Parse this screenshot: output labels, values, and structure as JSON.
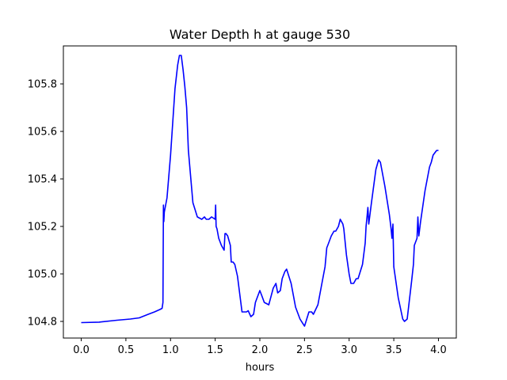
{
  "chart_data": {
    "type": "line",
    "title": "Water Depth h at gauge 530",
    "xlabel": "hours",
    "ylabel": "",
    "xlim": [
      -0.2,
      4.2
    ],
    "ylim": [
      104.73,
      105.96
    ],
    "grid": false,
    "xticks": [
      0.0,
      0.5,
      1.0,
      1.5,
      2.0,
      2.5,
      3.0,
      3.5,
      4.0
    ],
    "xtick_labels": [
      "0.0",
      "0.5",
      "1.0",
      "1.5",
      "2.0",
      "2.5",
      "3.0",
      "3.5",
      "4.0"
    ],
    "yticks": [
      104.8,
      105.0,
      105.2,
      105.4,
      105.6,
      105.8
    ],
    "ytick_labels": [
      "104.8",
      "105.0",
      "105.2",
      "105.4",
      "105.6",
      "105.8"
    ],
    "line_color": "#0000ff",
    "series": [
      {
        "x": [
          0.0,
          0.2,
          0.4,
          0.55,
          0.65,
          0.75,
          0.82,
          0.88,
          0.905,
          0.915,
          0.92,
          0.925,
          0.93,
          0.96,
          1.0,
          1.05,
          1.08,
          1.1,
          1.12,
          1.14,
          1.16,
          1.18,
          1.2,
          1.25,
          1.3,
          1.35,
          1.38,
          1.4,
          1.43,
          1.46,
          1.5,
          1.505,
          1.51,
          1.52,
          1.54,
          1.57,
          1.6,
          1.61,
          1.62,
          1.64,
          1.67,
          1.68,
          1.7,
          1.72,
          1.75,
          1.8,
          1.85,
          1.87,
          1.9,
          1.93,
          1.95,
          2.0,
          2.02,
          2.05,
          2.1,
          2.15,
          2.18,
          2.2,
          2.23,
          2.25,
          2.28,
          2.3,
          2.35,
          2.4,
          2.45,
          2.5,
          2.55,
          2.58,
          2.6,
          2.65,
          2.7,
          2.73,
          2.75,
          2.76,
          2.8,
          2.83,
          2.85,
          2.88,
          2.9,
          2.93,
          2.94,
          2.97,
          3.0,
          3.02,
          3.05,
          3.08,
          3.1,
          3.15,
          3.18,
          3.19,
          3.2,
          3.21,
          3.22,
          3.25,
          3.3,
          3.33,
          3.35,
          3.4,
          3.45,
          3.47,
          3.48,
          3.49,
          3.5,
          3.55,
          3.6,
          3.62,
          3.65,
          3.7,
          3.72,
          3.73,
          3.76,
          3.77,
          3.78,
          3.8,
          3.85,
          3.9,
          3.92,
          3.94,
          3.96,
          3.98,
          4.0
        ],
        "y": [
          104.795,
          104.797,
          104.805,
          104.81,
          104.815,
          104.83,
          104.84,
          104.85,
          104.855,
          104.88,
          105.29,
          105.22,
          105.26,
          105.32,
          105.5,
          105.78,
          105.88,
          105.92,
          105.92,
          105.86,
          105.79,
          105.7,
          105.52,
          105.3,
          105.24,
          105.23,
          105.24,
          105.23,
          105.23,
          105.24,
          105.23,
          105.29,
          105.2,
          105.19,
          105.15,
          105.12,
          105.1,
          105.17,
          105.17,
          105.16,
          105.12,
          105.05,
          105.05,
          105.04,
          104.99,
          104.84,
          104.84,
          104.845,
          104.82,
          104.83,
          104.88,
          104.93,
          104.91,
          104.88,
          104.87,
          104.94,
          104.96,
          104.92,
          104.93,
          104.98,
          105.01,
          105.02,
          104.96,
          104.86,
          104.81,
          104.78,
          104.84,
          104.84,
          104.83,
          104.87,
          104.97,
          105.03,
          105.11,
          105.12,
          105.16,
          105.18,
          105.18,
          105.2,
          105.23,
          105.21,
          105.19,
          105.08,
          105.0,
          104.96,
          104.96,
          104.98,
          104.98,
          105.04,
          105.13,
          105.2,
          105.24,
          105.28,
          105.21,
          105.3,
          105.44,
          105.48,
          105.47,
          105.37,
          105.25,
          105.19,
          105.15,
          105.21,
          105.03,
          104.9,
          104.81,
          104.8,
          104.81,
          104.97,
          105.04,
          105.12,
          105.15,
          105.24,
          105.16,
          105.22,
          105.35,
          105.45,
          105.47,
          105.5,
          105.51,
          105.52,
          105.52
        ]
      }
    ]
  }
}
